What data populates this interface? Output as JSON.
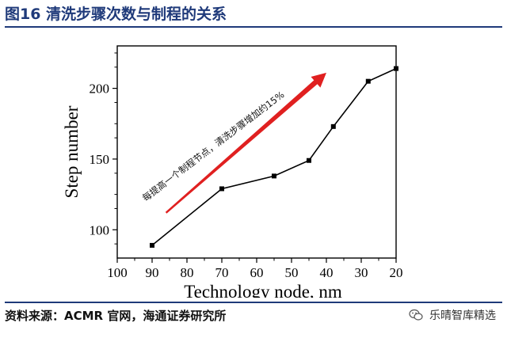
{
  "figure": {
    "title": "图16 清洗步骤次数与制程的关系",
    "source": "资料来源：ACMR 官网，海通证券研究所",
    "watermark": "乐晴智库精选",
    "watermark_icon": "wechat-icon",
    "title_color": "#1f3a7a"
  },
  "chart_data": {
    "type": "line",
    "x": [
      90,
      70,
      55,
      45,
      38,
      28,
      20
    ],
    "y": [
      89,
      129,
      138,
      149,
      173,
      205,
      214
    ],
    "xlabel": "Technology node, nm",
    "ylabel": "Step number",
    "xlim": [
      100,
      20
    ],
    "ylim": [
      80,
      230
    ],
    "x_ticks": [
      100,
      90,
      80,
      70,
      60,
      50,
      40,
      30,
      20
    ],
    "y_ticks": [
      100,
      150,
      200
    ],
    "x_reversed": true,
    "grid": false,
    "legend": "none",
    "line_color": "#000000",
    "marker": "square",
    "annotation": {
      "text": "每提高一个制程节点，清洗步骤增加约15%",
      "arrow_color": "#e02020",
      "arrow_from": [
        86,
        112
      ],
      "arrow_to": [
        40,
        211
      ]
    }
  }
}
